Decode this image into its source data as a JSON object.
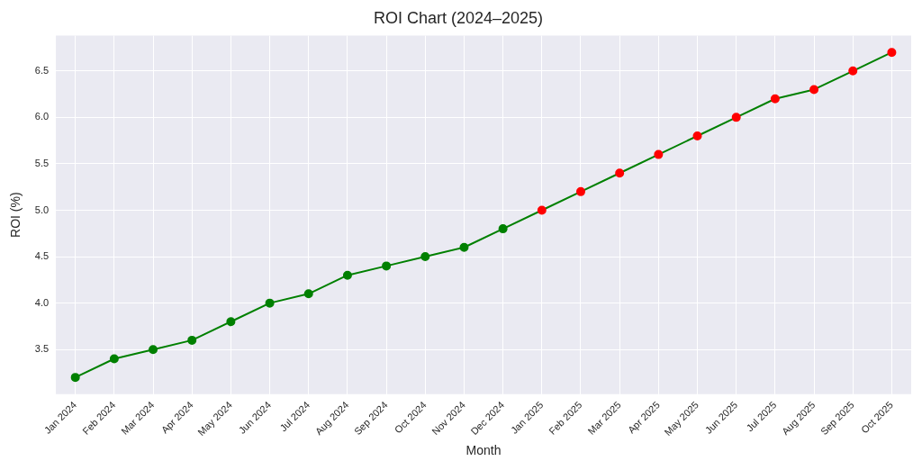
{
  "chart_data": {
    "type": "line",
    "title": "ROI Chart (2024–2025)",
    "xlabel": "Month",
    "ylabel": "ROI (%)",
    "categories": [
      "Jan 2024",
      "Feb 2024",
      "Mar 2024",
      "Apr 2024",
      "May 2024",
      "Jun 2024",
      "Jul 2024",
      "Aug 2024",
      "Sep 2024",
      "Oct 2024",
      "Nov 2024",
      "Dec 2024",
      "Jan 2025",
      "Feb 2025",
      "Mar 2025",
      "Apr 2025",
      "May 2025",
      "Jun 2025",
      "Jul 2025",
      "Aug 2025",
      "Sep 2025",
      "Oct 2025"
    ],
    "series": [
      {
        "color": "#008000",
        "colors": [
          "#008000",
          "#008000",
          "#008000",
          "#008000",
          "#008000",
          "#008000",
          "#008000",
          "#008000",
          "#008000",
          "#008000",
          "#008000",
          "#008000",
          "#ff0000",
          "#ff0000",
          "#ff0000",
          "#ff0000",
          "#ff0000",
          "#ff0000",
          "#ff0000",
          "#ff0000",
          "#ff0000",
          "#ff0000"
        ],
        "values": [
          3.2,
          3.4,
          3.5,
          3.6,
          3.8,
          4.0,
          4.1,
          4.3,
          4.4,
          4.5,
          4.6,
          4.8,
          5.0,
          5.2,
          5.4,
          5.6,
          5.8,
          6.0,
          6.2,
          6.3,
          6.5,
          6.7
        ]
      }
    ],
    "ylim": [
      3.02,
      6.88
    ],
    "yticks": [
      {
        "value": 3.5,
        "label": "3.5"
      },
      {
        "value": 4,
        "label": "4.0"
      },
      {
        "value": 4.5,
        "label": "4.5"
      },
      {
        "value": 5,
        "label": "5.0"
      },
      {
        "value": 5.5,
        "label": "5.5"
      },
      {
        "value": 6,
        "label": "6.0"
      },
      {
        "value": 6.5,
        "label": "6.5"
      }
    ],
    "grid": true,
    "legend": false,
    "marker": "circle",
    "line_style": "solid"
  }
}
